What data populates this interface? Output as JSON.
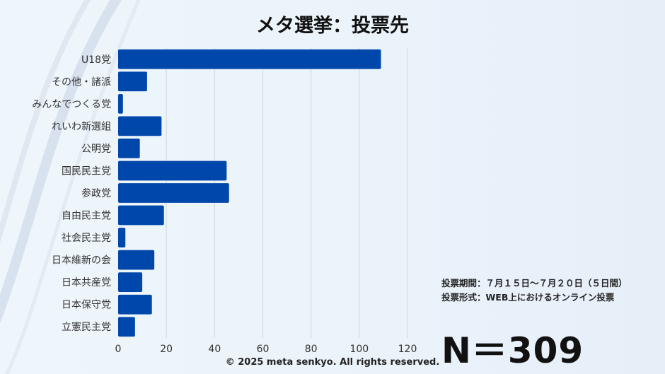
{
  "title": "メタ選挙：投票先",
  "info": {
    "period": "投票期間：７月１５日〜７月２０日（５日間）",
    "format": "投票形式：WEB上におけるオンライン投票"
  },
  "sample_size": "N＝309",
  "copyright": "© 2025 meta senkyo. All rights reserved.",
  "colors": {
    "bar": "#0047ab",
    "grid": "#cfd6de"
  },
  "chart_data": {
    "type": "bar",
    "orientation": "horizontal",
    "title": "メタ選挙：投票先",
    "xlabel": "",
    "ylabel": "",
    "xlim": [
      0,
      120
    ],
    "xticks": [
      0,
      20,
      40,
      60,
      80,
      100,
      120
    ],
    "grid": true,
    "categories": [
      "U18党",
      "その他・諸派",
      "みんなでつくる党",
      "れいわ新選組",
      "公明党",
      "国民民主党",
      "参政党",
      "自由民主党",
      "社会民主党",
      "日本維新の会",
      "日本共産党",
      "日本保守党",
      "立憲民主党"
    ],
    "values": [
      109,
      12,
      2,
      18,
      9,
      45,
      46,
      19,
      3,
      15,
      10,
      14,
      7
    ]
  }
}
